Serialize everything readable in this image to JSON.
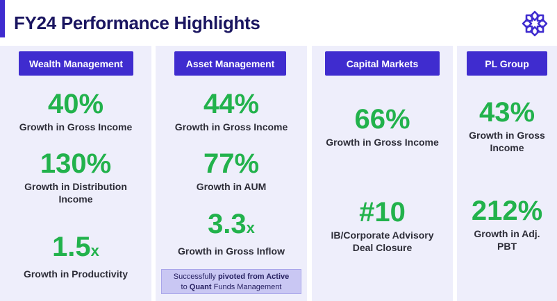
{
  "title": "FY24 Performance Highlights",
  "colors": {
    "accent": "#3f2ccf",
    "metric": "#22b24c",
    "panel": "#eeeefb"
  },
  "columns": [
    {
      "heading": "Wealth Management",
      "metrics": [
        {
          "value": "40%",
          "suffix": "",
          "label": "Growth in Gross Income"
        },
        {
          "value": "130%",
          "suffix": "",
          "label": "Growth in Distribution Income"
        },
        {
          "value": "1.5",
          "suffix": "x",
          "label": "Growth in Productivity"
        }
      ]
    },
    {
      "heading": "Asset Management",
      "metrics": [
        {
          "value": "44%",
          "suffix": "",
          "label": "Growth in Gross Income"
        },
        {
          "value": "77%",
          "suffix": "",
          "label": "Growth in AUM"
        },
        {
          "value": "3.3",
          "suffix": "x",
          "label": "Growth in Gross Inflow"
        }
      ],
      "note": {
        "text_1": "Successfully ",
        "bold_1": "pivoted from Active",
        "text_2": "to ",
        "bold_2": "Quant",
        "text_3": " Funds Management"
      }
    },
    {
      "heading": "Capital Markets",
      "metrics": [
        {
          "value": "66%",
          "suffix": "",
          "label": "Growth in Gross Income"
        },
        {
          "value": "#10",
          "suffix": "",
          "label": "IB/Corporate Advisory Deal Closure"
        }
      ]
    },
    {
      "heading": "PL Group",
      "metrics": [
        {
          "value": "43%",
          "suffix": "",
          "label": "Growth in Gross Income"
        },
        {
          "value": "212%",
          "suffix": "",
          "label": "Growth in Adj. PBT"
        }
      ]
    }
  ]
}
